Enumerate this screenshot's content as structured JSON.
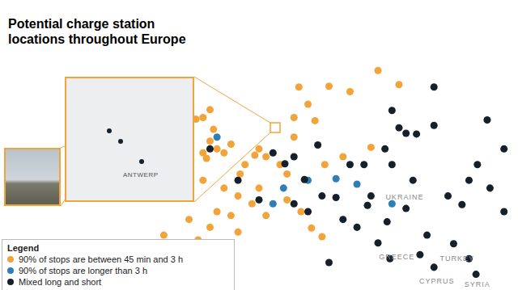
{
  "chart_data": {
    "type": "map",
    "title": "Potential charge station locations throughout Europe",
    "xlim": [
      -32,
      42
    ],
    "ylim": [
      34,
      71
    ],
    "tick_labels": false,
    "legend": "lower left",
    "legend_title": "Legend",
    "series": [
      {
        "name": "90% of stops are between 45 min and 3 h",
        "color": "#f2a43a",
        "marker": "circle",
        "points": [
          [
            -2,
            53
          ],
          [
            -1,
            52
          ],
          [
            -3,
            51.5
          ],
          [
            0,
            51.5
          ],
          [
            -1.5,
            54.5
          ],
          [
            -3,
            56
          ],
          [
            -4,
            55.8
          ],
          [
            -2,
            57
          ],
          [
            1,
            52.6
          ],
          [
            -2.5,
            50.8
          ],
          [
            -8,
            53
          ],
          [
            -6.3,
            53.3
          ],
          [
            -8.5,
            52
          ],
          [
            -7,
            54.5
          ],
          [
            2.3,
            48.8
          ],
          [
            0,
            47
          ],
          [
            4,
            45
          ],
          [
            -1,
            44
          ],
          [
            5,
            47
          ],
          [
            3,
            50
          ],
          [
            -3,
            48
          ],
          [
            1,
            43.5
          ],
          [
            6,
            43.5
          ],
          [
            2,
            46
          ],
          [
            -3.7,
            40.4
          ],
          [
            -6,
            37.5
          ],
          [
            -8.6,
            41
          ],
          [
            -9,
            38.7
          ],
          [
            0,
            39.5
          ],
          [
            2,
            41.4
          ],
          [
            -5,
            43
          ],
          [
            -2,
            42
          ],
          [
            4.4,
            51.2
          ],
          [
            5,
            52
          ],
          [
            6,
            51
          ],
          [
            8,
            50
          ],
          [
            10,
            53.5
          ],
          [
            9,
            48.8
          ],
          [
            10.7,
            59.9
          ],
          [
            12,
            57.7
          ],
          [
            18,
            59.3
          ],
          [
            13,
            55.6
          ],
          [
            10,
            56
          ],
          [
            15,
            60
          ],
          [
            25,
            60.2
          ],
          [
            22,
            62
          ],
          [
            9,
            45.5
          ],
          [
            12.5,
            41.9
          ],
          [
            14,
            40.8
          ],
          [
            11,
            44
          ],
          [
            21,
            52.2
          ],
          [
            17,
            51
          ],
          [
            14.4,
            50
          ]
        ]
      },
      {
        "name": "90% of stops are longer than 3 h",
        "color": "#2f7fb5",
        "marker": "circle",
        "points": [
          [
            -1,
            53.5
          ],
          [
            -6,
            53
          ],
          [
            8.5,
            47
          ],
          [
            16,
            48.2
          ],
          [
            19,
            47.5
          ],
          [
            24,
            45
          ],
          [
            12,
            48
          ],
          [
            7,
            45
          ]
        ]
      },
      {
        "name": "Mixed long and short",
        "color": "#15202b",
        "marker": "circle",
        "points": [
          [
            13.4,
            52.5
          ],
          [
            11.5,
            48.1
          ],
          [
            8.7,
            50.1
          ],
          [
            7,
            51.5
          ],
          [
            10,
            51
          ],
          [
            18,
            50
          ],
          [
            20,
            50
          ],
          [
            23,
            52
          ],
          [
            26,
            54
          ],
          [
            30,
            55
          ],
          [
            37.6,
            55.7
          ],
          [
            30,
            59.9
          ],
          [
            40,
            52
          ],
          [
            35,
            48
          ],
          [
            32,
            46
          ],
          [
            36.2,
            50
          ],
          [
            27,
            48
          ],
          [
            24,
            50
          ],
          [
            21,
            46
          ],
          [
            26,
            44.4
          ],
          [
            23.3,
            42.7
          ],
          [
            20.5,
            44.8
          ],
          [
            16,
            45.8
          ],
          [
            19,
            42
          ],
          [
            22,
            40
          ],
          [
            23.7,
            38
          ],
          [
            29,
            41
          ],
          [
            32.8,
            39.9
          ],
          [
            35,
            38
          ],
          [
            28,
            38.5
          ],
          [
            30,
            36.9
          ],
          [
            36,
            36
          ],
          [
            14,
            46
          ],
          [
            12,
            44
          ],
          [
            15,
            37.5
          ],
          [
            -4,
            40
          ],
          [
            -3,
            37
          ],
          [
            2,
            48
          ],
          [
            5,
            45.5
          ],
          [
            -2,
            52
          ],
          [
            24,
            56.9
          ],
          [
            25,
            54.7
          ],
          [
            27.5,
            53.9
          ],
          [
            38,
            47
          ],
          [
            34,
            44.9
          ],
          [
            40,
            44
          ],
          [
            10,
            45
          ],
          [
            17,
            43
          ]
        ]
      }
    ],
    "place_labels": [
      {
        "text": "UKRAINE",
        "x": 25.8,
        "y": 45.8
      },
      {
        "text": "GREECE",
        "x": 24.7,
        "y": 38.2
      },
      {
        "text": "CYPRUS",
        "x": 30.4,
        "y": 35.1
      },
      {
        "text": "TURKEY",
        "x": 33.3,
        "y": 38
      },
      {
        "text": "SYRIA",
        "x": 36.2,
        "y": 34.7
      }
    ],
    "inset": {
      "label": "ANTWERP"
    }
  }
}
